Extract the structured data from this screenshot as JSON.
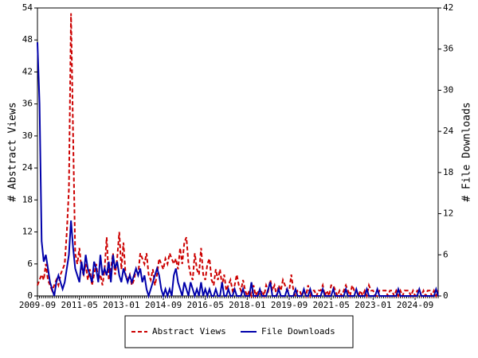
{
  "chart_data": {
    "type": "line",
    "y_label": "# Abstract Views",
    "y2_label": "# File Downloads",
    "categories": [
      "2009-09",
      null,
      null,
      null,
      null,
      null,
      null,
      null,
      null,
      null,
      null,
      null,
      null,
      null,
      null,
      null,
      null,
      null,
      null,
      null,
      "2011-05",
      null,
      null,
      null,
      null,
      null,
      null,
      null,
      null,
      null,
      null,
      null,
      null,
      null,
      null,
      null,
      null,
      null,
      null,
      null,
      "2013-01",
      null,
      null,
      null,
      null,
      null,
      null,
      null,
      null,
      null,
      null,
      null,
      null,
      null,
      null,
      null,
      null,
      null,
      null,
      null,
      "2014-09",
      null,
      null,
      null,
      null,
      null,
      null,
      null,
      null,
      null,
      null,
      null,
      null,
      null,
      null,
      null,
      null,
      null,
      null,
      null,
      "2016-05",
      null,
      null,
      null,
      null,
      null,
      null,
      null,
      null,
      null,
      null,
      null,
      null,
      null,
      null,
      null,
      null,
      null,
      null,
      null,
      "2018-01",
      null,
      null,
      null,
      null,
      null,
      null,
      null,
      null,
      null,
      null,
      null,
      null,
      null,
      null,
      null,
      null,
      null,
      null,
      null,
      "2019-09",
      null,
      null,
      null,
      null,
      null,
      null,
      null,
      null,
      null,
      null,
      null,
      null,
      null,
      null,
      null,
      null,
      null,
      null,
      null,
      "2021-05",
      null,
      null,
      null,
      null,
      null,
      null,
      null,
      null,
      null,
      null,
      null,
      null,
      null,
      null,
      null,
      null,
      null,
      null,
      null,
      "2023-01",
      null,
      null,
      null,
      null,
      null,
      null,
      null,
      null,
      null,
      null,
      null,
      null,
      null,
      null,
      null,
      null,
      null,
      null,
      null,
      "2024-09",
      null,
      null,
      null,
      null,
      null,
      null,
      null,
      null,
      null,
      null,
      null
    ],
    "series": [
      {
        "name": "Abstract Views",
        "color": "#cc0000",
        "linestyle": "dashed",
        "axis": "y",
        "values": [
          2,
          3,
          4,
          3,
          6,
          3,
          2,
          1,
          2,
          3,
          2,
          4,
          5,
          6,
          12,
          20,
          53,
          30,
          8,
          6,
          9,
          5,
          4,
          6,
          3,
          5,
          2,
          4,
          6,
          3,
          4,
          2,
          5,
          11,
          3,
          5,
          8,
          4,
          7,
          12,
          5,
          10,
          4,
          3,
          4,
          2,
          3,
          5,
          4,
          8,
          7,
          6,
          8,
          4,
          3,
          5,
          2,
          4,
          7,
          6,
          5,
          7,
          6,
          8,
          7,
          6,
          7,
          5,
          9,
          6,
          10,
          11,
          6,
          4,
          3,
          8,
          5,
          4,
          9,
          4,
          3,
          6,
          7,
          3,
          2,
          5,
          3,
          5,
          2,
          4,
          1,
          2,
          3,
          1,
          2,
          4,
          2,
          1,
          3,
          1,
          0,
          1,
          0,
          2,
          0,
          1,
          0,
          1,
          0,
          2,
          1,
          3,
          1,
          2,
          0,
          2,
          1,
          3,
          2,
          1,
          1,
          4,
          1,
          0,
          1,
          1,
          0,
          1,
          0,
          2,
          0,
          1,
          1,
          0,
          1,
          1,
          2,
          0,
          1,
          0,
          2,
          2,
          1,
          0,
          1,
          0,
          1,
          2,
          1,
          0,
          2,
          1,
          1,
          0,
          1,
          0,
          1,
          0,
          2,
          1,
          1,
          0,
          0,
          1,
          1,
          1,
          1,
          0,
          1,
          1,
          0,
          1,
          0,
          1,
          0,
          1,
          1,
          1,
          0,
          1,
          0,
          1,
          1,
          0,
          1,
          0,
          1,
          1,
          0,
          1,
          0,
          1
        ]
      },
      {
        "name": "File Downloads",
        "color": "#0000aa",
        "linestyle": "solid",
        "axis": "y2",
        "values": [
          37,
          28,
          8,
          5,
          6,
          4,
          2,
          1,
          0,
          2,
          3,
          2,
          1,
          2,
          4,
          6,
          11,
          7,
          4,
          3,
          2,
          5,
          3,
          6,
          4,
          3,
          2,
          5,
          4,
          2,
          6,
          3,
          4,
          3,
          5,
          2,
          6,
          4,
          5,
          3,
          2,
          4,
          3,
          2,
          3,
          2,
          3,
          4,
          3,
          4,
          2,
          3,
          1,
          0,
          1,
          2,
          3,
          4,
          3,
          1,
          0,
          1,
          0,
          1,
          0,
          3,
          4,
          2,
          1,
          0,
          2,
          1,
          0,
          2,
          1,
          0,
          1,
          0,
          2,
          0,
          1,
          0,
          1,
          0,
          0,
          1,
          0,
          0,
          2,
          0,
          0,
          1,
          0,
          0,
          1,
          0,
          0,
          0,
          1,
          0,
          0,
          0,
          2,
          0,
          0,
          0,
          1,
          0,
          0,
          0,
          1,
          2,
          0,
          0,
          0,
          1,
          0,
          0,
          0,
          1,
          0,
          0,
          0,
          1,
          0,
          0,
          0,
          1,
          0,
          0,
          1,
          0,
          0,
          0,
          0,
          0,
          1,
          0,
          0,
          0,
          0,
          1,
          0,
          0,
          0,
          0,
          0,
          1,
          0,
          0,
          0,
          0,
          1,
          0,
          0,
          0,
          0,
          1,
          0,
          0,
          0,
          0,
          1,
          0,
          0,
          0,
          0,
          0,
          0,
          0,
          0,
          0,
          1,
          0,
          0,
          0,
          0,
          0,
          0,
          0,
          0,
          0,
          1,
          0,
          0,
          0,
          0,
          0,
          0,
          0,
          1,
          0
        ]
      }
    ],
    "ylim": [
      0,
      54
    ],
    "yticks": [
      0,
      6,
      12,
      18,
      24,
      30,
      36,
      42,
      48,
      54
    ],
    "y2lim": [
      0,
      42
    ],
    "y2ticks": [
      0,
      6,
      12,
      18,
      24,
      30,
      36,
      42
    ],
    "legend": "bottom"
  }
}
